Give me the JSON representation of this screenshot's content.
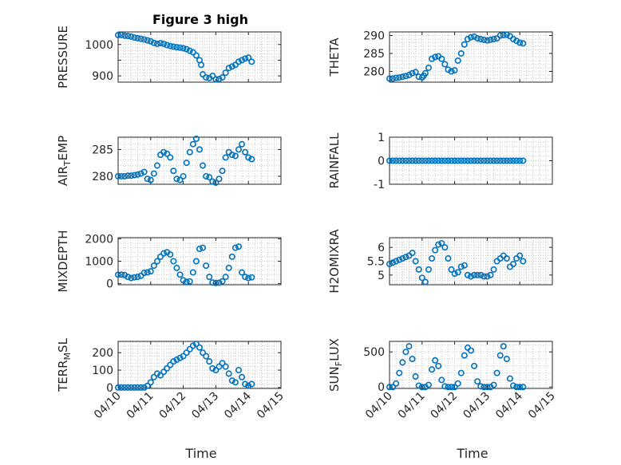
{
  "figure": {
    "title": "Figure 3 high",
    "marker_color": "#0072BD"
  },
  "chart_data": [
    {
      "type": "scatter",
      "name": "PRESSURE",
      "ylabel": "PRESSURE",
      "ylabel_sub": "",
      "xlim": [
        0,
        5
      ],
      "ylim": [
        880,
        1040
      ],
      "yticks": [
        900,
        950,
        1000
      ],
      "ytick_labels": [
        "900",
        "",
        "1000"
      ],
      "xticks": [
        0,
        1,
        2,
        3,
        4,
        5
      ],
      "xtick_labels": [
        "04/10",
        "04/11",
        "04/12",
        "04/13",
        "04/14",
        "04/15"
      ],
      "show_xticklabels": false,
      "xlabel": "",
      "x": [
        0,
        0.1,
        0.2,
        0.3,
        0.4,
        0.5,
        0.6,
        0.7,
        0.8,
        0.9,
        1,
        1.1,
        1.2,
        1.3,
        1.4,
        1.5,
        1.6,
        1.7,
        1.8,
        1.9,
        2,
        2.1,
        2.2,
        2.3,
        2.4,
        2.5,
        2.55,
        2.6,
        2.7,
        2.8,
        2.9,
        3,
        3.1,
        3.2,
        3.3,
        3.4,
        3.5,
        3.6,
        3.7,
        3.8,
        3.9,
        4,
        4.1
      ],
      "y": [
        1030,
        1030,
        1028,
        1027,
        1025,
        1022,
        1020,
        1018,
        1016,
        1013,
        1010,
        1005,
        1002,
        1004,
        1002,
        998,
        995,
        993,
        991,
        990,
        988,
        985,
        980,
        975,
        965,
        950,
        935,
        905,
        895,
        893,
        900,
        889,
        890,
        895,
        910,
        925,
        930,
        935,
        945,
        950,
        955,
        958,
        945
      ]
    },
    {
      "type": "scatter",
      "name": "THETA",
      "ylabel": "THETA",
      "ylabel_sub": "",
      "xlim": [
        0,
        5
      ],
      "ylim": [
        277,
        291
      ],
      "yticks": [
        280,
        285,
        290
      ],
      "ytick_labels": [
        "280",
        "285",
        "290"
      ],
      "xticks": [
        0,
        1,
        2,
        3,
        4,
        5
      ],
      "xtick_labels": [
        "04/10",
        "04/11",
        "04/12",
        "04/13",
        "04/14",
        "04/15"
      ],
      "show_xticklabels": false,
      "xlabel": "",
      "x": [
        0,
        0.1,
        0.2,
        0.3,
        0.4,
        0.5,
        0.6,
        0.7,
        0.8,
        0.9,
        1,
        1.05,
        1.1,
        1.2,
        1.3,
        1.4,
        1.5,
        1.6,
        1.7,
        1.8,
        1.9,
        2,
        2.1,
        2.2,
        2.3,
        2.4,
        2.5,
        2.6,
        2.7,
        2.8,
        2.9,
        3,
        3.1,
        3.2,
        3.3,
        3.4,
        3.5,
        3.6,
        3.7,
        3.8,
        3.9,
        4,
        4.1
      ],
      "y": [
        278,
        278,
        278.2,
        278.3,
        278.5,
        278.7,
        279,
        279.5,
        279.8,
        278.5,
        278.3,
        278.8,
        279.5,
        281,
        283.5,
        284,
        284.2,
        283.5,
        282,
        280.5,
        280,
        280.3,
        283,
        285,
        287.5,
        289,
        289.5,
        289.7,
        289.2,
        289,
        288.8,
        288.6,
        288.8,
        289,
        289.2,
        290,
        290.1,
        290.2,
        289.8,
        289,
        288.5,
        288,
        287.8
      ]
    },
    {
      "type": "scatter",
      "name": "AIR_TEMP",
      "ylabel": "AIR",
      "ylabel_sub": "T",
      "ylabel_suffix": "EMP",
      "xlim": [
        0,
        5
      ],
      "ylim": [
        278.5,
        287.3
      ],
      "yticks": [
        280,
        285
      ],
      "ytick_labels": [
        "280",
        "285"
      ],
      "xticks": [
        0,
        1,
        2,
        3,
        4,
        5
      ],
      "xtick_labels": [
        "04/10",
        "04/11",
        "04/12",
        "04/13",
        "04/14",
        "04/15"
      ],
      "show_xticklabels": false,
      "xlabel": "",
      "x": [
        0,
        0.1,
        0.2,
        0.3,
        0.4,
        0.5,
        0.6,
        0.7,
        0.8,
        0.9,
        1,
        1.1,
        1.2,
        1.3,
        1.4,
        1.5,
        1.6,
        1.7,
        1.8,
        1.9,
        2,
        2.1,
        2.2,
        2.3,
        2.4,
        2.5,
        2.6,
        2.7,
        2.8,
        2.9,
        3,
        3.1,
        3.2,
        3.3,
        3.4,
        3.5,
        3.6,
        3.7,
        3.8,
        3.9,
        4,
        4.1
      ],
      "y": [
        280,
        280,
        280,
        280.1,
        280.1,
        280.2,
        280.3,
        280.5,
        280.8,
        279.5,
        279.3,
        280.5,
        282,
        284,
        284.5,
        284.2,
        283.5,
        281,
        279.5,
        279.3,
        280,
        282.5,
        284.5,
        286,
        287,
        285,
        282,
        280,
        279.8,
        279,
        278.8,
        279.5,
        281,
        283.5,
        284.5,
        284,
        283.8,
        285,
        286,
        284.5,
        283.5,
        283.2
      ]
    },
    {
      "type": "scatter",
      "name": "RAINFALL",
      "ylabel": "RAINFALL",
      "ylabel_sub": "",
      "xlim": [
        0,
        5
      ],
      "ylim": [
        -1,
        1
      ],
      "yticks": [
        -1,
        0,
        1
      ],
      "ytick_labels": [
        "-1",
        "0",
        "1"
      ],
      "xticks": [
        0,
        1,
        2,
        3,
        4,
        5
      ],
      "xtick_labels": [
        "04/10",
        "04/11",
        "04/12",
        "04/13",
        "04/14",
        "04/15"
      ],
      "show_xticklabels": false,
      "xlabel": "",
      "x": [
        0,
        0.1,
        0.2,
        0.3,
        0.4,
        0.5,
        0.6,
        0.7,
        0.8,
        0.9,
        1,
        1.1,
        1.2,
        1.3,
        1.4,
        1.5,
        1.6,
        1.7,
        1.8,
        1.9,
        2,
        2.1,
        2.2,
        2.3,
        2.4,
        2.5,
        2.6,
        2.7,
        2.8,
        2.9,
        3,
        3.1,
        3.2,
        3.3,
        3.4,
        3.5,
        3.6,
        3.7,
        3.8,
        3.9,
        4,
        4.1
      ],
      "y": [
        0,
        0,
        0,
        0,
        0,
        0,
        0,
        0,
        0,
        0,
        0,
        0,
        0,
        0,
        0,
        0,
        0,
        0,
        0,
        0,
        0,
        0,
        0,
        0,
        0,
        0,
        0,
        0,
        0,
        0,
        0,
        0,
        0,
        0,
        0,
        0,
        0,
        0,
        0,
        0,
        0,
        0
      ]
    },
    {
      "type": "scatter",
      "name": "MIXDEPTH",
      "ylabel": "MIXDEPTH",
      "ylabel_sub": "",
      "xlim": [
        0,
        5
      ],
      "ylim": [
        -50,
        2050
      ],
      "yticks": [
        0,
        1000,
        2000
      ],
      "ytick_labels": [
        "0",
        "1000",
        "2000"
      ],
      "xticks": [
        0,
        1,
        2,
        3,
        4,
        5
      ],
      "xtick_labels": [
        "04/10",
        "04/11",
        "04/12",
        "04/13",
        "04/14",
        "04/15"
      ],
      "show_xticklabels": false,
      "xlabel": "",
      "x": [
        0,
        0.1,
        0.2,
        0.3,
        0.4,
        0.5,
        0.6,
        0.7,
        0.8,
        0.9,
        1,
        1.1,
        1.2,
        1.3,
        1.4,
        1.5,
        1.6,
        1.7,
        1.8,
        1.9,
        2,
        2.1,
        2.2,
        2.3,
        2.4,
        2.5,
        2.6,
        2.7,
        2.8,
        2.9,
        3,
        3.1,
        3.2,
        3.3,
        3.4,
        3.5,
        3.6,
        3.7,
        3.8,
        3.9,
        4,
        4.1
      ],
      "y": [
        400,
        400,
        380,
        300,
        250,
        280,
        300,
        350,
        480,
        500,
        550,
        800,
        1000,
        1200,
        1350,
        1400,
        1300,
        1000,
        700,
        400,
        150,
        80,
        100,
        500,
        1000,
        1550,
        1600,
        800,
        300,
        50,
        30,
        40,
        100,
        300,
        700,
        1200,
        1600,
        1650,
        500,
        300,
        250,
        280
      ]
    },
    {
      "type": "scatter",
      "name": "H2OMIXRA",
      "ylabel": "H2OMIXRA",
      "ylabel_sub": "",
      "xlim": [
        0,
        5
      ],
      "ylim": [
        4.65,
        6.35
      ],
      "yticks": [
        5,
        5.5,
        6
      ],
      "ytick_labels": [
        "5",
        "5.5",
        "6"
      ],
      "xticks": [
        0,
        1,
        2,
        3,
        4,
        5
      ],
      "xtick_labels": [
        "04/10",
        "04/11",
        "04/12",
        "04/13",
        "04/14",
        "04/15"
      ],
      "show_xticklabels": false,
      "xlabel": "",
      "x": [
        0,
        0.1,
        0.2,
        0.3,
        0.4,
        0.5,
        0.6,
        0.7,
        0.8,
        0.9,
        1,
        1.1,
        1.2,
        1.3,
        1.4,
        1.5,
        1.6,
        1.7,
        1.8,
        1.9,
        2,
        2.1,
        2.2,
        2.3,
        2.4,
        2.5,
        2.6,
        2.7,
        2.8,
        2.9,
        3,
        3.1,
        3.2,
        3.3,
        3.4,
        3.5,
        3.6,
        3.7,
        3.8,
        3.9,
        4,
        4.1
      ],
      "y": [
        5.4,
        5.45,
        5.5,
        5.55,
        5.6,
        5.65,
        5.7,
        5.8,
        5.5,
        5.2,
        4.9,
        4.75,
        5.2,
        5.6,
        5.9,
        6.1,
        6.15,
        6.0,
        5.6,
        5.2,
        5.05,
        5.1,
        5.3,
        5.35,
        5.0,
        4.95,
        5.0,
        5.0,
        5.0,
        4.95,
        4.95,
        5.0,
        5.2,
        5.5,
        5.6,
        5.7,
        5.6,
        5.3,
        5.4,
        5.6,
        5.7,
        5.5
      ]
    },
    {
      "type": "scatter",
      "name": "TERR_MSL",
      "ylabel": "TERR",
      "ylabel_sub": "M",
      "ylabel_suffix": "SL",
      "xlim": [
        0,
        5
      ],
      "ylim": [
        -5,
        265
      ],
      "yticks": [
        0,
        100,
        200
      ],
      "ytick_labels": [
        "0",
        "100",
        "200"
      ],
      "xticks": [
        0,
        1,
        2,
        3,
        4,
        5
      ],
      "xtick_labels": [
        "04/10",
        "04/11",
        "04/12",
        "04/13",
        "04/14",
        "04/15"
      ],
      "show_xticklabels": true,
      "xlabel": "Time",
      "x": [
        0,
        0.1,
        0.2,
        0.3,
        0.4,
        0.5,
        0.6,
        0.7,
        0.8,
        0.9,
        1,
        1.1,
        1.2,
        1.3,
        1.4,
        1.5,
        1.6,
        1.7,
        1.8,
        1.9,
        2,
        2.1,
        2.2,
        2.3,
        2.4,
        2.5,
        2.6,
        2.7,
        2.8,
        2.9,
        3,
        3.1,
        3.2,
        3.3,
        3.4,
        3.5,
        3.6,
        3.7,
        3.8,
        3.9,
        4,
        4.1
      ],
      "y": [
        0,
        0,
        0,
        0,
        0,
        0,
        0,
        0,
        0,
        10,
        30,
        60,
        80,
        70,
        90,
        110,
        130,
        150,
        160,
        170,
        180,
        200,
        220,
        240,
        250,
        230,
        200,
        180,
        150,
        110,
        100,
        120,
        140,
        120,
        80,
        40,
        30,
        100,
        60,
        20,
        10,
        20
      ]
    },
    {
      "type": "scatter",
      "name": "SUN_FLUX",
      "ylabel": "SUN",
      "ylabel_sub": "F",
      "ylabel_suffix": "LUX",
      "xlim": [
        0,
        5
      ],
      "ylim": [
        -20,
        650
      ],
      "yticks": [
        0,
        500
      ],
      "ytick_labels": [
        "0",
        "500"
      ],
      "xticks": [
        0,
        1,
        2,
        3,
        4,
        5
      ],
      "xtick_labels": [
        "04/10",
        "04/11",
        "04/12",
        "04/13",
        "04/14",
        "04/15"
      ],
      "show_xticklabels": true,
      "xlabel": "Time",
      "x": [
        0,
        0.1,
        0.2,
        0.3,
        0.4,
        0.5,
        0.6,
        0.7,
        0.8,
        0.9,
        1,
        1.1,
        1.2,
        1.3,
        1.4,
        1.5,
        1.6,
        1.7,
        1.8,
        1.9,
        2,
        2.1,
        2.2,
        2.3,
        2.4,
        2.5,
        2.6,
        2.7,
        2.8,
        2.9,
        3,
        3.1,
        3.2,
        3.3,
        3.4,
        3.5,
        3.6,
        3.7,
        3.8,
        3.9,
        4,
        4.1
      ],
      "y": [
        0,
        0,
        50,
        200,
        350,
        500,
        580,
        400,
        150,
        20,
        0,
        0,
        30,
        250,
        380,
        300,
        100,
        10,
        0,
        0,
        0,
        50,
        200,
        450,
        560,
        520,
        300,
        80,
        10,
        0,
        0,
        0,
        30,
        200,
        450,
        580,
        400,
        120,
        20,
        0,
        0,
        0
      ]
    }
  ]
}
